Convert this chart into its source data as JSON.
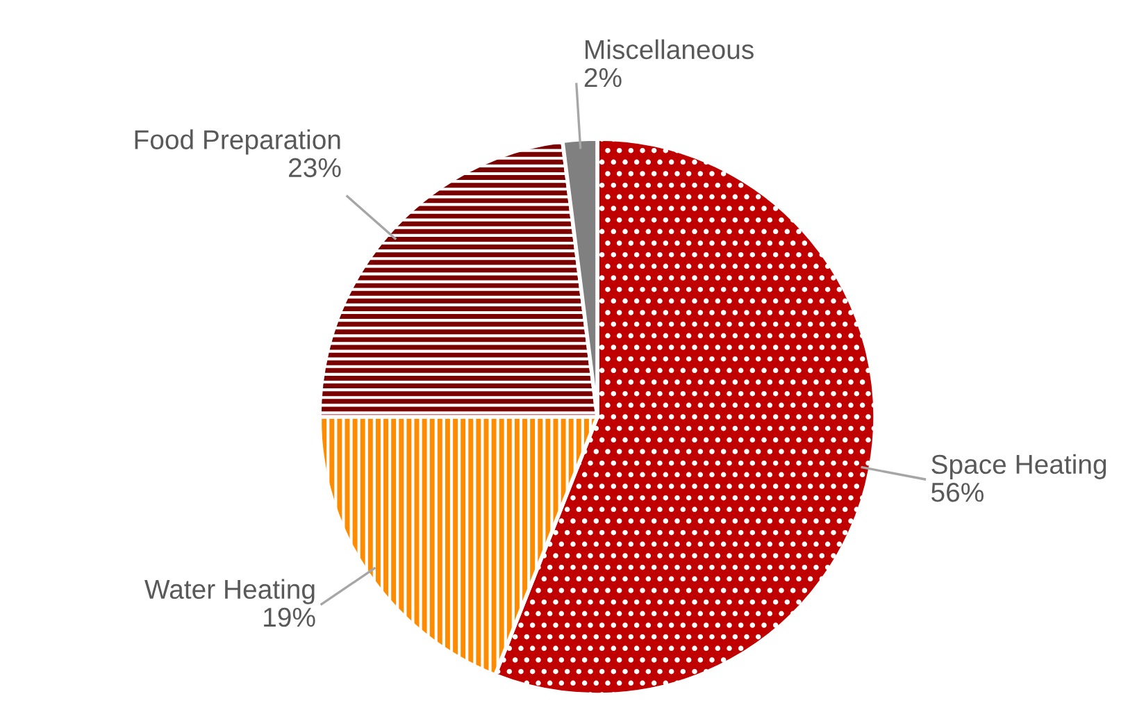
{
  "chart_data": {
    "type": "pie",
    "categories": [
      "Space Heating",
      "Water Heating",
      "Food Preparation",
      "Miscellaneous"
    ],
    "values": [
      56,
      19,
      23,
      2
    ],
    "value_labels": [
      "56%",
      "19%",
      "23%",
      "2%"
    ],
    "colors": [
      "#c00000",
      "#ff8c00",
      "#7b0000",
      "#808080"
    ]
  }
}
